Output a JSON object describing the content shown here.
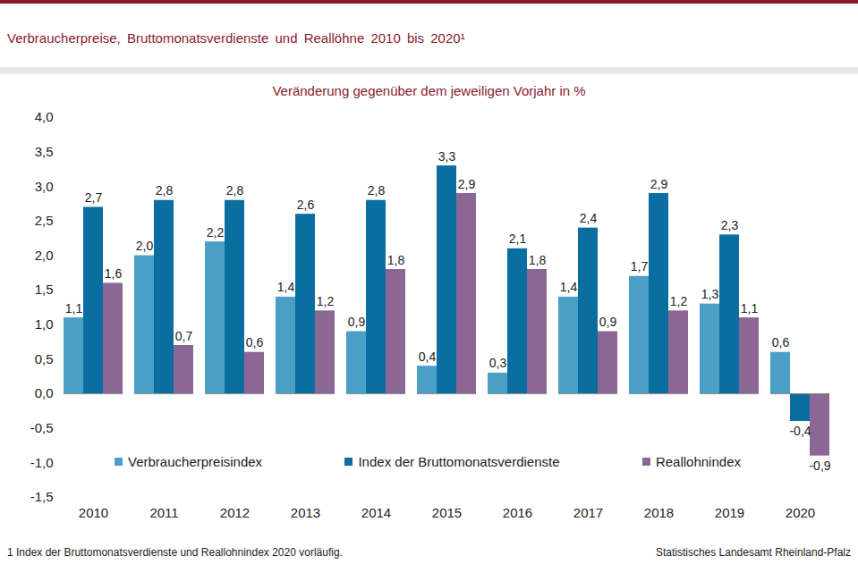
{
  "chart_data": {
    "type": "bar",
    "title": "Verbraucherpreise, Bruttomonatsverdienste und Reallöhne 2010 bis 2020¹",
    "subtitle": "Veränderung gegenüber dem jeweiligen Vorjahr in %",
    "footnote": "1 Index der Bruttomonatsverdienste und Reallohnindex 2020 vorläufig.",
    "source": "Statistisches Landesamt Rheinland-Pfalz",
    "categories": [
      "2010",
      "2011",
      "2012",
      "2013",
      "2014",
      "2015",
      "2016",
      "2017",
      "2018",
      "2019",
      "2020"
    ],
    "series": [
      {
        "name": "Verbraucherpreisindex",
        "color": "#4a9fc7",
        "values": [
          1.1,
          2.0,
          2.2,
          1.4,
          0.9,
          0.4,
          0.3,
          1.4,
          1.7,
          1.3,
          0.6
        ],
        "value_labels": [
          "1,1",
          "2,0",
          "2,2",
          "1,4",
          "0,9",
          "0,4",
          "0,3",
          "1,4",
          "1,7",
          "1,3",
          "0,6"
        ]
      },
      {
        "name": "Index der Bruttomonatsverdienste",
        "color": "#0a6fa0",
        "values": [
          2.7,
          2.8,
          2.8,
          2.6,
          2.8,
          3.3,
          2.1,
          2.4,
          2.9,
          2.3,
          -0.4
        ],
        "value_labels": [
          "2,7",
          "2,8",
          "2,8",
          "2,6",
          "2,8",
          "3,3",
          "2,1",
          "2,4",
          "2,9",
          "2,3",
          "-0,4"
        ]
      },
      {
        "name": "Reallohnindex",
        "color": "#8c6694",
        "values": [
          1.6,
          0.7,
          0.6,
          1.2,
          1.8,
          2.9,
          1.8,
          0.9,
          1.2,
          1.1,
          -0.9
        ],
        "value_labels": [
          "1,6",
          "0,7",
          "0,6",
          "1,2",
          "1,8",
          "2,9",
          "1,8",
          "0,9",
          "1,2",
          "1,1",
          "-0,9"
        ]
      }
    ],
    "ylim": [
      -1.5,
      4.0
    ],
    "yticks": [
      {
        "value": -1.5,
        "label": "-1,5"
      },
      {
        "value": -1.0,
        "label": "-1,0"
      },
      {
        "value": -0.5,
        "label": "-0,5"
      },
      {
        "value": 0.0,
        "label": "0,0"
      },
      {
        "value": 0.5,
        "label": "0,5"
      },
      {
        "value": 1.0,
        "label": "1,0"
      },
      {
        "value": 1.5,
        "label": "1,5"
      },
      {
        "value": 2.0,
        "label": "2,0"
      },
      {
        "value": 2.5,
        "label": "2,5"
      },
      {
        "value": 3.0,
        "label": "3,0"
      },
      {
        "value": 3.5,
        "label": "3,5"
      },
      {
        "value": 4.0,
        "label": "4,0"
      }
    ],
    "grid": false,
    "legend": "bottom",
    "data_labels": true
  }
}
